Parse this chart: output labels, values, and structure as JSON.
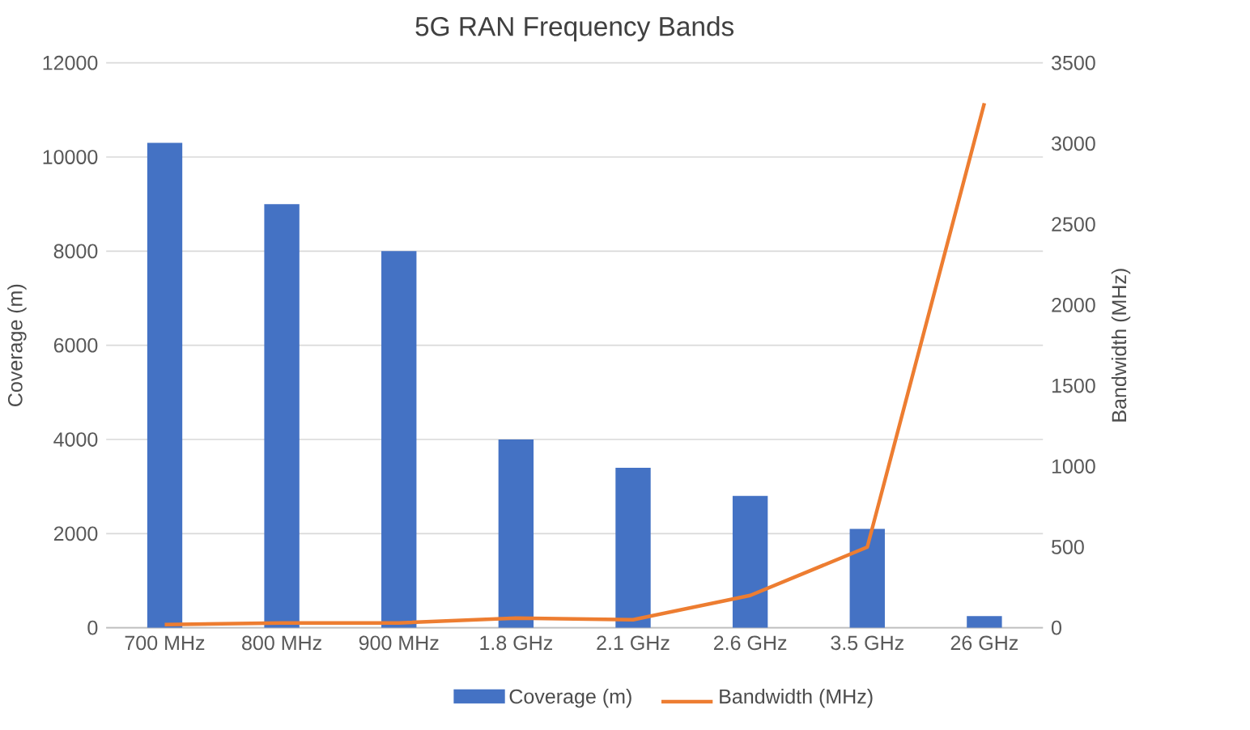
{
  "chart_data": {
    "type": "bar",
    "title": "5G RAN Frequency Bands",
    "categories": [
      "700 MHz",
      "800 MHz",
      "900 MHz",
      "1.8 GHz",
      "2.1 GHz",
      "2.6 GHz",
      "3.5 GHz",
      "26 GHz"
    ],
    "series": [
      {
        "name": "Coverage (m)",
        "color": "#4472c4",
        "values": [
          10300,
          9000,
          8000,
          4000,
          3400,
          2800,
          2100,
          250
        ]
      },
      {
        "name": "Bandwidth (MHz)",
        "type": "line",
        "axis": "y2",
        "color": "#ed7d31",
        "values": [
          20,
          30,
          30,
          60,
          50,
          200,
          500,
          3250
        ]
      }
    ],
    "ylabel": "Coverage (m)",
    "y2label": "Bandwidth (MHz)",
    "ylim": [
      0,
      12000
    ],
    "yticks": [
      0,
      2000,
      4000,
      6000,
      8000,
      10000,
      12000
    ],
    "y2lim": [
      0,
      3500
    ],
    "y2ticks": [
      0,
      500,
      1000,
      1500,
      2000,
      2500,
      3000,
      3500
    ],
    "grid": "y",
    "legend": "bottom",
    "marker": "none",
    "line_style": "solid"
  }
}
